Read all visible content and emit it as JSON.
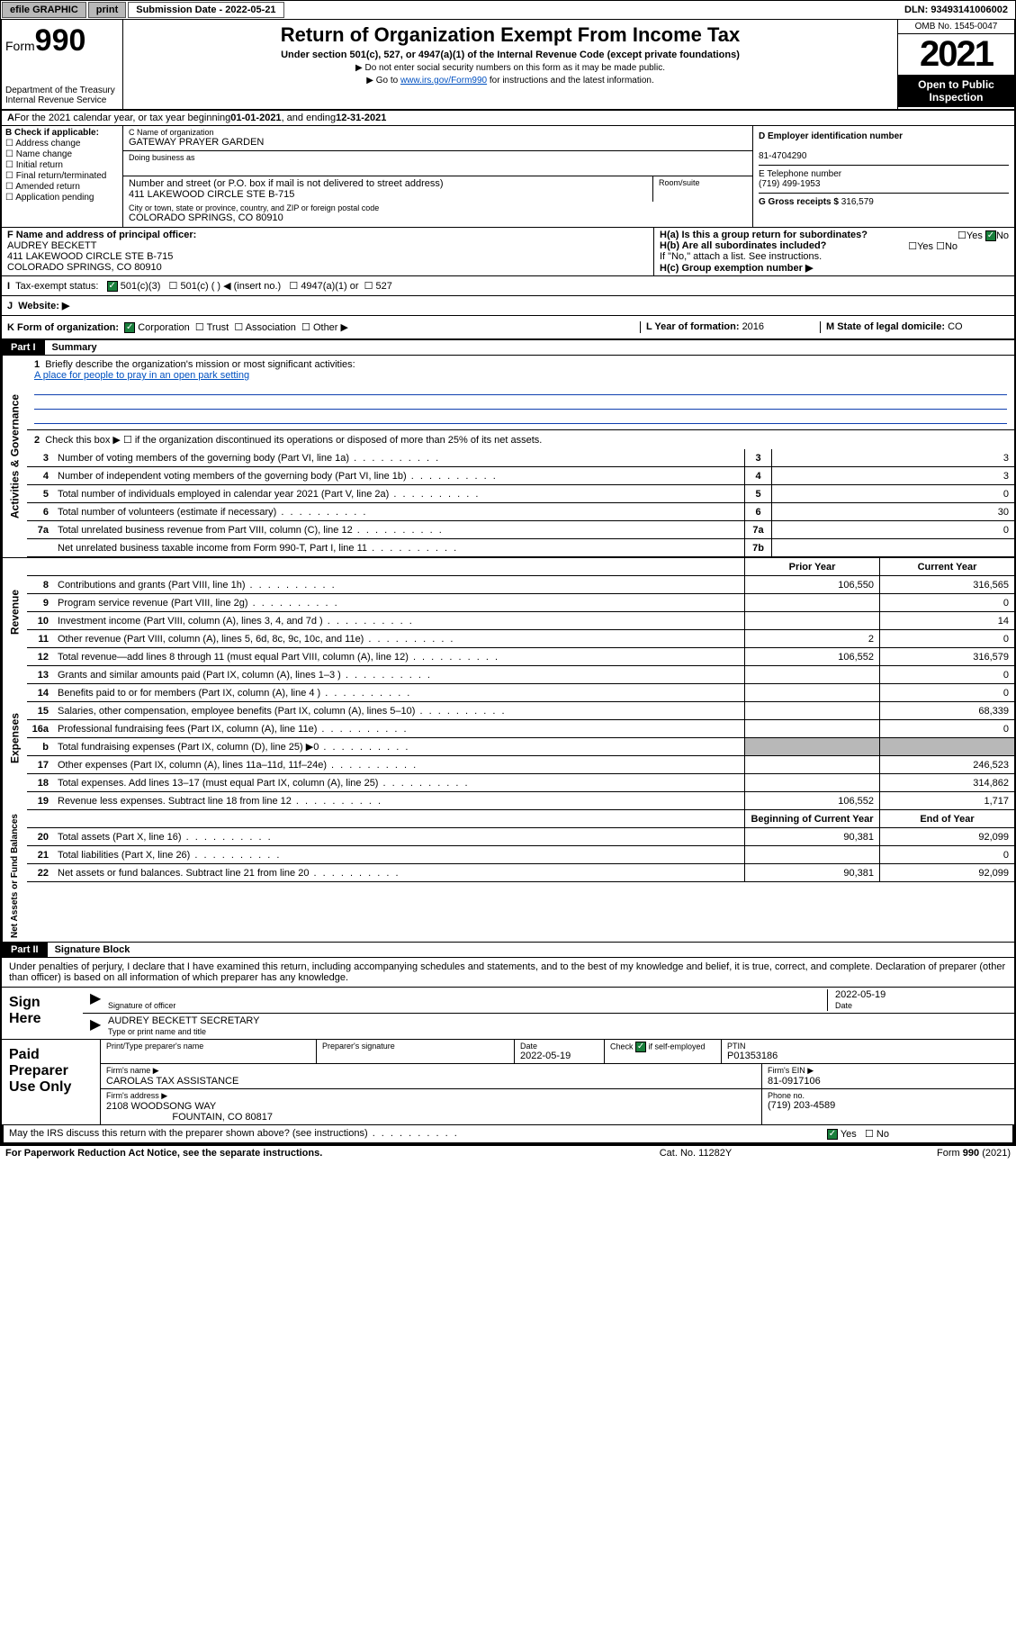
{
  "topbar": {
    "efile": "efile GRAPHIC",
    "print": "print",
    "subdate_label": "Submission Date - ",
    "subdate": "2022-05-21",
    "dln_label": "DLN: ",
    "dln": "93493141006002"
  },
  "header": {
    "form_prefix": "Form",
    "form_num": "990",
    "dept": "Department of the Treasury\nInternal Revenue Service",
    "title": "Return of Organization Exempt From Income Tax",
    "sub": "Under section 501(c), 527, or 4947(a)(1) of the Internal Revenue Code (except private foundations)",
    "note1": "▶ Do not enter social security numbers on this form as it may be made public.",
    "note2_pre": "▶ Go to ",
    "note2_link": "www.irs.gov/Form990",
    "note2_post": " for instructions and the latest information.",
    "omb": "OMB No. 1545-0047",
    "year": "2021",
    "openpub": "Open to Public Inspection"
  },
  "blockA": {
    "text_pre": "For the 2021 calendar year, or tax year beginning ",
    "begin": "01-01-2021",
    "mid": " , and ending ",
    "end": "12-31-2021"
  },
  "blockB": {
    "label": "B Check if applicable:",
    "opts": [
      "Address change",
      "Name change",
      "Initial return",
      "Final return/terminated",
      "Amended return",
      "Application pending"
    ]
  },
  "blockC": {
    "name_label": "C Name of organization",
    "name": "GATEWAY PRAYER GARDEN",
    "dba_label": "Doing business as",
    "dba": "",
    "addr_label": "Number and street (or P.O. box if mail is not delivered to street address)",
    "room_label": "Room/suite",
    "addr": "411 LAKEWOOD CIRCLE STE B-715",
    "city_label": "City or town, state or province, country, and ZIP or foreign postal code",
    "city": "COLORADO SPRINGS, CO  80910"
  },
  "blockD": {
    "label": "D Employer identification number",
    "val": "81-4704290"
  },
  "blockE": {
    "label": "E Telephone number",
    "val": "(719) 499-1953"
  },
  "blockG": {
    "label": "G Gross receipts $",
    "val": "316,579"
  },
  "blockF": {
    "label": "F Name and address of principal officer:",
    "name": "AUDREY BECKETT",
    "addr1": "411 LAKEWOOD CIRCLE STE B-715",
    "addr2": "COLORADO SPRINGS, CO  80910"
  },
  "blockH": {
    "ha": "H(a)  Is this a group return for subordinates?",
    "hb": "H(b)  Are all subordinates included?",
    "hnote": "If \"No,\" attach a list. See instructions.",
    "hc": "H(c)  Group exemption number ▶",
    "yes": "Yes",
    "no": "No"
  },
  "blockI": {
    "label": "Tax-exempt status:",
    "o1": "501(c)(3)",
    "o2": "501(c) (  ) ◀ (insert no.)",
    "o3": "4947(a)(1) or",
    "o4": "527"
  },
  "blockJ": {
    "label": "Website: ▶"
  },
  "blockK": {
    "label": "K Form of organization:",
    "o1": "Corporation",
    "o2": "Trust",
    "o3": "Association",
    "o4": "Other ▶"
  },
  "blockL": {
    "label": "L Year of formation: ",
    "val": "2016"
  },
  "blockM": {
    "label": "M State of legal domicile: ",
    "val": "CO"
  },
  "parts": {
    "p1": "Part I",
    "p1name": "Summary",
    "p2": "Part II",
    "p2name": "Signature Block"
  },
  "summary": {
    "line1_label": "Briefly describe the organization's mission or most significant activities:",
    "line1_link": "A place for people to pray in an open park setting",
    "line2": "Check this box ▶ ☐  if the organization discontinued its operations or disposed of more than 25% of its net assets.",
    "hdr_prior": "Prior Year",
    "hdr_curr": "Current Year",
    "hdr_boy": "Beginning of Current Year",
    "hdr_eoy": "End of Year",
    "tabs": {
      "gov": "Activities & Governance",
      "rev": "Revenue",
      "exp": "Expenses",
      "net": "Net Assets or Fund Balances"
    },
    "gov_lines": [
      {
        "n": "3",
        "d": "Number of voting members of the governing body (Part VI, line 1a)",
        "box": "3",
        "v": "3"
      },
      {
        "n": "4",
        "d": "Number of independent voting members of the governing body (Part VI, line 1b)",
        "box": "4",
        "v": "3"
      },
      {
        "n": "5",
        "d": "Total number of individuals employed in calendar year 2021 (Part V, line 2a)",
        "box": "5",
        "v": "0"
      },
      {
        "n": "6",
        "d": "Total number of volunteers (estimate if necessary)",
        "box": "6",
        "v": "30"
      },
      {
        "n": "7a",
        "d": "Total unrelated business revenue from Part VIII, column (C), line 12",
        "box": "7a",
        "v": "0"
      },
      {
        "n": "",
        "d": "Net unrelated business taxable income from Form 990-T, Part I, line 11",
        "box": "7b",
        "v": ""
      }
    ],
    "rev_lines": [
      {
        "n": "8",
        "d": "Contributions and grants (Part VIII, line 1h)",
        "p": "106,550",
        "c": "316,565"
      },
      {
        "n": "9",
        "d": "Program service revenue (Part VIII, line 2g)",
        "p": "",
        "c": "0"
      },
      {
        "n": "10",
        "d": "Investment income (Part VIII, column (A), lines 3, 4, and 7d )",
        "p": "",
        "c": "14"
      },
      {
        "n": "11",
        "d": "Other revenue (Part VIII, column (A), lines 5, 6d, 8c, 9c, 10c, and 11e)",
        "p": "2",
        "c": "0"
      },
      {
        "n": "12",
        "d": "Total revenue—add lines 8 through 11 (must equal Part VIII, column (A), line 12)",
        "p": "106,552",
        "c": "316,579"
      }
    ],
    "exp_lines": [
      {
        "n": "13",
        "d": "Grants and similar amounts paid (Part IX, column (A), lines 1–3 )",
        "p": "",
        "c": "0"
      },
      {
        "n": "14",
        "d": "Benefits paid to or for members (Part IX, column (A), line 4 )",
        "p": "",
        "c": "0"
      },
      {
        "n": "15",
        "d": "Salaries, other compensation, employee benefits (Part IX, column (A), lines 5–10)",
        "p": "",
        "c": "68,339"
      },
      {
        "n": "16a",
        "d": "Professional fundraising fees (Part IX, column (A), line 11e)",
        "p": "",
        "c": "0"
      },
      {
        "n": "b",
        "d": "Total fundraising expenses (Part IX, column (D), line 25) ▶0",
        "p": "shade",
        "c": "shade"
      },
      {
        "n": "17",
        "d": "Other expenses (Part IX, column (A), lines 11a–11d, 11f–24e)",
        "p": "",
        "c": "246,523"
      },
      {
        "n": "18",
        "d": "Total expenses. Add lines 13–17 (must equal Part IX, column (A), line 25)",
        "p": "",
        "c": "314,862"
      },
      {
        "n": "19",
        "d": "Revenue less expenses. Subtract line 18 from line 12",
        "p": "106,552",
        "c": "1,717"
      }
    ],
    "net_lines": [
      {
        "n": "20",
        "d": "Total assets (Part X, line 16)",
        "p": "90,381",
        "c": "92,099"
      },
      {
        "n": "21",
        "d": "Total liabilities (Part X, line 26)",
        "p": "",
        "c": "0"
      },
      {
        "n": "22",
        "d": "Net assets or fund balances. Subtract line 21 from line 20",
        "p": "90,381",
        "c": "92,099"
      }
    ]
  },
  "sig": {
    "decl": "Under penalties of perjury, I declare that I have examined this return, including accompanying schedules and statements, and to the best of my knowledge and belief, it is true, correct, and complete. Declaration of preparer (other than officer) is based on all information of which preparer has any knowledge.",
    "signhere": "Sign Here",
    "sig_officer": "Signature of officer",
    "date": "Date",
    "sigdate": "2022-05-19",
    "officer": "AUDREY BECKETT  SECRETARY",
    "typeprint": "Type or print name and title",
    "paid": "Paid Preparer Use Only",
    "h_prep": "Print/Type preparer's name",
    "h_sig": "Preparer's signature",
    "h_date": "Date",
    "h_check": "Check ☑ if self-employed",
    "h_ptin": "PTIN",
    "p_date": "2022-05-19",
    "p_ptin": "P01353186",
    "firm_name_l": "Firm's name    ▶",
    "firm_name": "CAROLAS TAX ASSISTANCE",
    "firm_ein_l": "Firm's EIN ▶",
    "firm_ein": "81-0917106",
    "firm_addr_l": "Firm's address ▶",
    "firm_addr1": "2108 WOODSONG WAY",
    "firm_addr2": "FOUNTAIN, CO  80817",
    "phone_l": "Phone no.",
    "phone": "(719) 203-4589",
    "may": "May the IRS discuss this return with the preparer shown above? (see instructions)",
    "yes": "Yes",
    "no": "No"
  },
  "footer": {
    "pra": "For Paperwork Reduction Act Notice, see the separate instructions.",
    "cat": "Cat. No. 11282Y",
    "form": "Form 990 (2021)"
  },
  "colors": {
    "link": "#0050c0",
    "check_green": "#1a7f3c",
    "shade": "#b8b8b8"
  }
}
